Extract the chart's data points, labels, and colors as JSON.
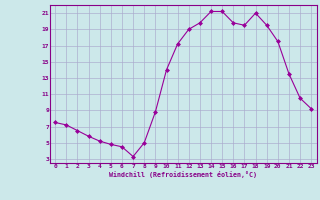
{
  "x": [
    0,
    1,
    2,
    3,
    4,
    5,
    6,
    7,
    8,
    9,
    10,
    11,
    12,
    13,
    14,
    15,
    16,
    17,
    18,
    19,
    20,
    21,
    22,
    23
  ],
  "y": [
    7.5,
    7.2,
    6.5,
    5.8,
    5.2,
    4.8,
    4.5,
    3.3,
    5.0,
    8.8,
    14.0,
    17.2,
    19.0,
    19.8,
    21.2,
    21.2,
    19.8,
    19.5,
    21.0,
    19.5,
    17.5,
    13.5,
    10.5,
    9.2
  ],
  "line_color": "#990099",
  "marker": "D",
  "markersize": 2,
  "linewidth": 0.8,
  "xlabel": "Windchill (Refroidissement éolien,°C)",
  "ylabel": "",
  "xlim": [
    -0.5,
    23.5
  ],
  "ylim": [
    2.5,
    22.0
  ],
  "yticks": [
    3,
    5,
    7,
    9,
    11,
    13,
    15,
    17,
    19,
    21
  ],
  "xticks": [
    0,
    1,
    2,
    3,
    4,
    5,
    6,
    7,
    8,
    9,
    10,
    11,
    12,
    13,
    14,
    15,
    16,
    17,
    18,
    19,
    20,
    21,
    22,
    23
  ],
  "background_color": "#cce8ea",
  "grid_color": "#aaaacc",
  "tick_color": "#880088",
  "label_color": "#880088",
  "spine_color": "#880088"
}
